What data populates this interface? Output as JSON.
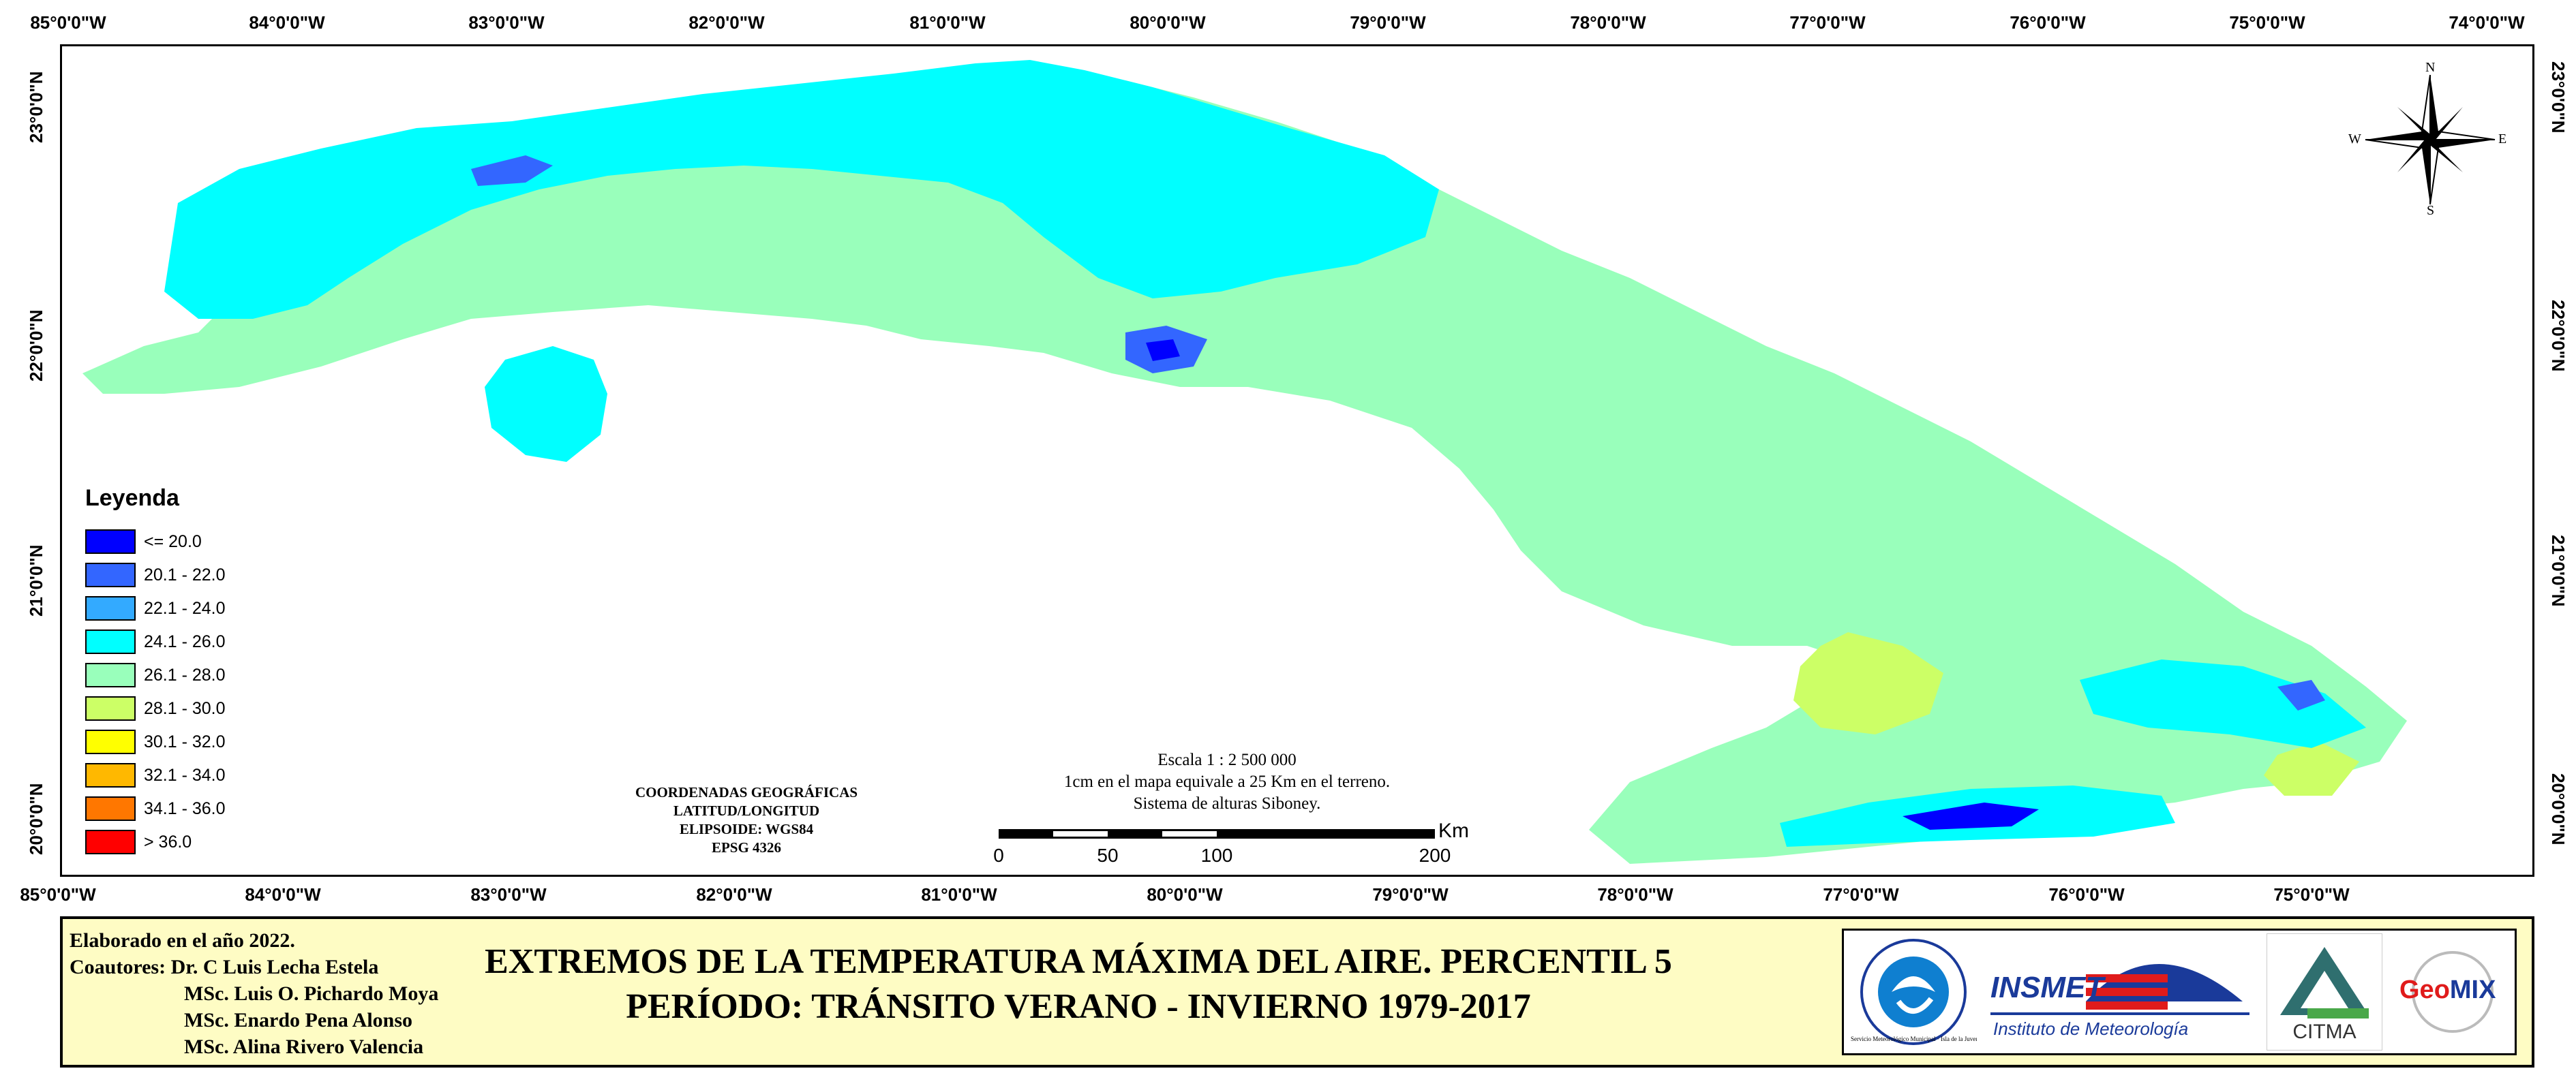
{
  "map": {
    "lon_labels_top": [
      "85°0'0\"W",
      "84°0'0\"W",
      "83°0'0\"W",
      "82°0'0\"W",
      "81°0'0\"W",
      "80°0'0\"W",
      "79°0'0\"W",
      "78°0'0\"W",
      "77°0'0\"W",
      "76°0'0\"W",
      "75°0'0\"W",
      "74°0'0\"W"
    ],
    "lon_labels_bottom": [
      "85°0'0\"W",
      "84°0'0\"W",
      "83°0'0\"W",
      "82°0'0\"W",
      "81°0'0\"W",
      "80°0'0\"W",
      "79°0'0\"W",
      "78°0'0\"W",
      "77°0'0\"W",
      "76°0'0\"W",
      "75°0'0\"W"
    ],
    "lat_labels": [
      "23°0'0\"N",
      "22°0'0\"N",
      "21°0'0\"N",
      "20°0'0\"N"
    ],
    "compass": {
      "n": "N",
      "s": "S",
      "e": "E",
      "w": "W"
    },
    "colors": {
      "land_base": "#99ffbb",
      "land_cool": "#00ffff",
      "land_warm": "#ccff66",
      "water": "#ffffff",
      "border": "#000000"
    }
  },
  "legend": {
    "title": "Leyenda",
    "items": [
      {
        "label": "<= 20.0",
        "color": "#0000ff"
      },
      {
        "label": "20.1 - 22.0",
        "color": "#3366ff"
      },
      {
        "label": "22.1 - 24.0",
        "color": "#33aaff"
      },
      {
        "label": "24.1 - 26.0",
        "color": "#00ffff"
      },
      {
        "label": "26.1 - 28.0",
        "color": "#99ffbb"
      },
      {
        "label": "28.1 - 30.0",
        "color": "#ccff66"
      },
      {
        "label": "30.1 - 32.0",
        "color": "#ffff00"
      },
      {
        "label": "32.1 - 34.0",
        "color": "#ffb800"
      },
      {
        "label": "34.1 - 36.0",
        "color": "#ff7700"
      },
      {
        "label": "> 36.0",
        "color": "#ff0000"
      }
    ]
  },
  "coords": {
    "line1": "COORDENADAS GEOGRÁFICAS",
    "line2": "LATITUD/LONGITUD",
    "line3": "ELIPSOIDE: WGS84",
    "line4": "EPSG 4326"
  },
  "scale": {
    "line1": "Escala 1 : 2 500 000",
    "line2": "1cm en el mapa equivale a 25 Km en el terreno.",
    "line3": "Sistema de alturas Siboney.",
    "unit": "Km",
    "ticks": [
      "0",
      "50",
      "100",
      "200"
    ]
  },
  "footer": {
    "credits": {
      "year": "Elaborado en el año 2022.",
      "coauthors_label": "Coautores: Dr. C Luis Lecha Estela",
      "author2": "MSc. Luis O. Pichardo Moya",
      "author3": "MSc. Enardo Pena Alonso",
      "author4": "MSc. Alina Rivero Valencia"
    },
    "title_line1": "EXTREMOS DE LA TEMPERATURA MÁXIMA DEL AIRE. PERCENTIL 5",
    "title_line2": "PERÍODO: TRÁNSITO VERANO - INVIERNO 1979-2017",
    "logos": {
      "logo1_text": "Servicio Meteorológico Municipal · Isla de la Juventud",
      "insmet": "INSMET",
      "insmet_sub": "Instituto de Meteorología",
      "citma": "CITMA",
      "geomix_geo": "Geo",
      "geomix_mix": "MIX"
    }
  }
}
